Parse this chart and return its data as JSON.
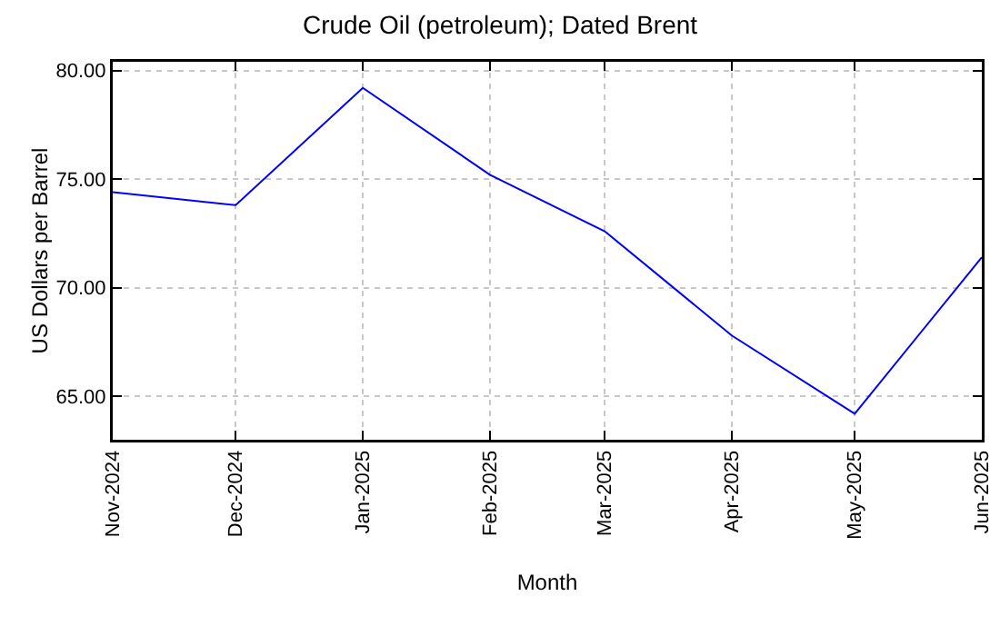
{
  "chart_data": {
    "type": "line",
    "title": "Crude Oil (petroleum); Dated Brent",
    "xlabel": "Month",
    "ylabel": "US Dollars per Barrel",
    "x": [
      "2024-11",
      "2024-12",
      "2025-01",
      "2025-02",
      "2025-03",
      "2025-04",
      "2025-05",
      "2025-06"
    ],
    "series": [
      {
        "color": "#0000ff",
        "values": [
          74.4,
          73.8,
          79.2,
          75.2,
          72.6,
          67.8,
          64.2,
          71.4
        ]
      }
    ],
    "xlim": [
      "2024-11",
      "2025-06"
    ],
    "xticks": [
      {
        "value": "2024-11",
        "label": "Nov-2024"
      },
      {
        "value": "2024-12",
        "label": "Dec-2024"
      },
      {
        "value": "2025-01",
        "label": "Jan-2025"
      },
      {
        "value": "2025-02",
        "label": "Feb-2025"
      },
      {
        "value": "2025-03",
        "label": "Mar-2025"
      },
      {
        "value": "2025-04",
        "label": "Apr-2025"
      },
      {
        "value": "2025-05",
        "label": "May-2025"
      },
      {
        "value": "2025-06",
        "label": "Jun-2025"
      }
    ],
    "ylim": [
      63.0,
      80.4
    ],
    "yticks": [
      {
        "value": 65,
        "label": "65.00"
      },
      {
        "value": 70,
        "label": "70.00"
      },
      {
        "value": 75,
        "label": "75.00"
      },
      {
        "value": 80,
        "label": "80.00"
      }
    ],
    "grid": true,
    "line_style": "solid",
    "marker": "none"
  }
}
